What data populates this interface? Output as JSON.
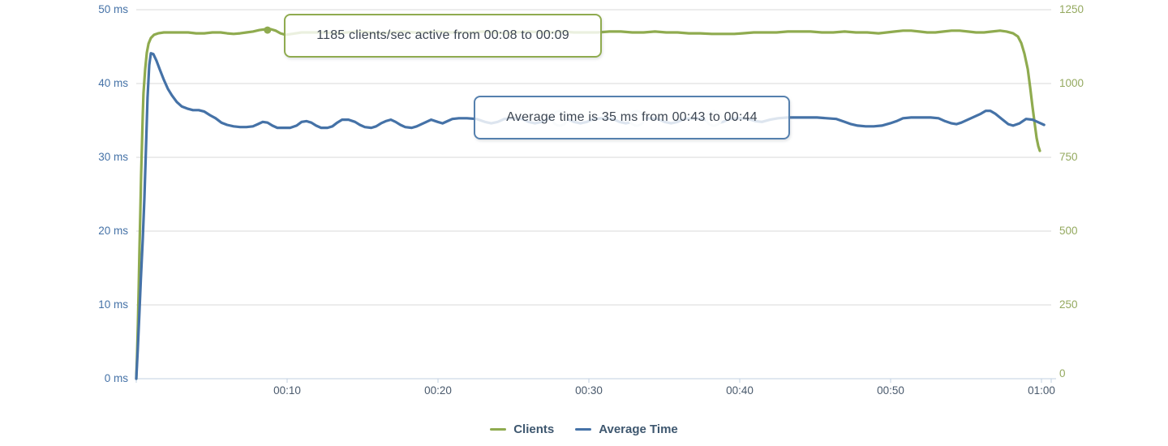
{
  "chart": {
    "legend": [
      {
        "label": "Clients",
        "color": "#8fab4f"
      },
      {
        "label": "Average Time",
        "color": "#4572a7"
      }
    ],
    "tooltips": [
      {
        "series": "Clients",
        "text": "1185 clients/sec active from 00:08 to 00:09"
      },
      {
        "series": "Average Time",
        "text": "Average time is 35 ms from 00:43 to 00:44"
      }
    ],
    "axes": {
      "left": {
        "labels": [
          "50 ms",
          "40 ms",
          "30 ms",
          "20 ms",
          "10 ms",
          "0 ms"
        ],
        "color": "#4572a7"
      },
      "right": {
        "labels": [
          "1250",
          "1000",
          "750",
          "500",
          "250",
          "0"
        ],
        "color": "#94a95f"
      },
      "x": {
        "labels": [
          "00:10",
          "00:20",
          "00:30",
          "00:40",
          "00:50",
          "01:00"
        ]
      }
    }
  },
  "chart_data": {
    "type": "line",
    "title": "",
    "xlabel": "",
    "x_axis": {
      "unit": "minutes",
      "range": [
        0,
        60.6
      ],
      "tick_minutes": [
        10,
        20,
        30,
        40,
        50,
        60
      ],
      "tick_labels": [
        "00:10",
        "00:20",
        "00:30",
        "00:40",
        "00:50",
        "01:00"
      ]
    },
    "y_axis_left": {
      "unit": "ms",
      "ylim": [
        0,
        50
      ],
      "tick_step": 10,
      "color": "#4572a7"
    },
    "y_axis_right": {
      "unit": "clients/sec",
      "ylim": [
        0,
        1250
      ],
      "tick_step": 250,
      "color": "#94a95f"
    },
    "grid": true,
    "legend_position": "bottom",
    "marker": {
      "series": "Clients",
      "x": 8.7,
      "value": 1181
    },
    "annotations": [
      {
        "series": "Clients",
        "text": "1185 clients/sec active from 00:08 to 00:09",
        "value": 1185,
        "from": "00:08",
        "to": "00:09"
      },
      {
        "series": "Average Time",
        "text": "Average time is 35 ms from 00:43 to 00:44",
        "value_ms": 35,
        "from": "00:43",
        "to": "00:44"
      }
    ],
    "series": [
      {
        "name": "Clients",
        "color": "#8fab4f",
        "axis": "right",
        "data": [
          [
            0,
            0
          ],
          [
            0.05,
            74
          ],
          [
            0.11,
            184
          ],
          [
            0.16,
            308
          ],
          [
            0.21,
            431
          ],
          [
            0.27,
            563
          ],
          [
            0.32,
            692
          ],
          [
            0.38,
            802
          ],
          [
            0.43,
            893
          ],
          [
            0.48,
            967
          ],
          [
            0.59,
            1049
          ],
          [
            0.7,
            1104
          ],
          [
            0.81,
            1135
          ],
          [
            0.97,
            1154
          ],
          [
            1.18,
            1165
          ],
          [
            1.45,
            1170
          ],
          [
            1.83,
            1173
          ],
          [
            2.36,
            1173
          ],
          [
            2.9,
            1173
          ],
          [
            3.44,
            1173
          ],
          [
            3.97,
            1170
          ],
          [
            4.51,
            1170
          ],
          [
            5.05,
            1173
          ],
          [
            5.59,
            1173
          ],
          [
            6.02,
            1170
          ],
          [
            6.45,
            1168
          ],
          [
            6.88,
            1170
          ],
          [
            7.3,
            1173
          ],
          [
            7.73,
            1176
          ],
          [
            8.16,
            1181
          ],
          [
            8.59,
            1184
          ],
          [
            8.92,
            1184
          ],
          [
            9.24,
            1179
          ],
          [
            9.56,
            1170
          ],
          [
            9.88,
            1165
          ],
          [
            10.31,
            1168
          ],
          [
            10.96,
            1173
          ],
          [
            11.71,
            1173
          ],
          [
            12.46,
            1173
          ],
          [
            13.21,
            1170
          ],
          [
            13.97,
            1173
          ],
          [
            14.72,
            1176
          ],
          [
            15.47,
            1173
          ],
          [
            16.22,
            1170
          ],
          [
            16.97,
            1173
          ],
          [
            17.72,
            1176
          ],
          [
            18.48,
            1173
          ],
          [
            19.23,
            1173
          ],
          [
            19.98,
            1176
          ],
          [
            20.73,
            1173
          ],
          [
            21.48,
            1173
          ],
          [
            22.24,
            1173
          ],
          [
            22.99,
            1176
          ],
          [
            23.74,
            1173
          ],
          [
            24.49,
            1170
          ],
          [
            25.24,
            1173
          ],
          [
            26,
            1176
          ],
          [
            26.75,
            1173
          ],
          [
            27.5,
            1173
          ],
          [
            28.25,
            1176
          ],
          [
            29.01,
            1173
          ],
          [
            29.76,
            1173
          ],
          [
            30.56,
            1173
          ],
          [
            31.37,
            1176
          ],
          [
            32.12,
            1176
          ],
          [
            32.87,
            1173
          ],
          [
            33.63,
            1173
          ],
          [
            34.38,
            1176
          ],
          [
            35.13,
            1173
          ],
          [
            35.88,
            1173
          ],
          [
            36.63,
            1170
          ],
          [
            37.38,
            1170
          ],
          [
            38.14,
            1168
          ],
          [
            38.89,
            1168
          ],
          [
            39.64,
            1168
          ],
          [
            40.18,
            1170
          ],
          [
            40.93,
            1173
          ],
          [
            41.68,
            1173
          ],
          [
            42.44,
            1173
          ],
          [
            43.19,
            1176
          ],
          [
            43.94,
            1176
          ],
          [
            44.69,
            1176
          ],
          [
            45.44,
            1173
          ],
          [
            46.2,
            1173
          ],
          [
            46.95,
            1176
          ],
          [
            47.7,
            1173
          ],
          [
            48.45,
            1173
          ],
          [
            49.2,
            1170
          ],
          [
            49.74,
            1173
          ],
          [
            50.28,
            1176
          ],
          [
            50.82,
            1179
          ],
          [
            51.36,
            1179
          ],
          [
            51.9,
            1176
          ],
          [
            52.43,
            1173
          ],
          [
            52.97,
            1173
          ],
          [
            53.51,
            1176
          ],
          [
            54.04,
            1179
          ],
          [
            54.58,
            1179
          ],
          [
            55.12,
            1176
          ],
          [
            55.66,
            1173
          ],
          [
            56.19,
            1173
          ],
          [
            56.73,
            1176
          ],
          [
            57.26,
            1179
          ],
          [
            57.69,
            1176
          ],
          [
            58.12,
            1170
          ],
          [
            58.44,
            1159
          ],
          [
            58.66,
            1137
          ],
          [
            58.87,
            1101
          ],
          [
            59.09,
            1049
          ],
          [
            59.25,
            986
          ],
          [
            59.41,
            920
          ],
          [
            59.57,
            857
          ],
          [
            59.68,
            816
          ],
          [
            59.79,
            788
          ],
          [
            59.89,
            772
          ]
        ]
      },
      {
        "name": "Average Time",
        "color": "#4572a7",
        "axis": "left",
        "data": [
          [
            0,
            0
          ],
          [
            0.1,
            4.1
          ],
          [
            0.2,
            8.5
          ],
          [
            0.3,
            13.4
          ],
          [
            0.43,
            18.9
          ],
          [
            0.54,
            24.4
          ],
          [
            0.64,
            31
          ],
          [
            0.75,
            38.1
          ],
          [
            0.86,
            42.5
          ],
          [
            0.97,
            44.1
          ],
          [
            1.13,
            44
          ],
          [
            1.34,
            43.1
          ],
          [
            1.56,
            41.9
          ],
          [
            1.83,
            40.5
          ],
          [
            2.09,
            39.3
          ],
          [
            2.36,
            38.4
          ],
          [
            2.69,
            37.5
          ],
          [
            3.01,
            36.9
          ],
          [
            3.38,
            36.6
          ],
          [
            3.76,
            36.4
          ],
          [
            4.14,
            36.4
          ],
          [
            4.51,
            36.2
          ],
          [
            4.89,
            35.7
          ],
          [
            5.26,
            35.3
          ],
          [
            5.64,
            34.7
          ],
          [
            6.02,
            34.4
          ],
          [
            6.45,
            34.2
          ],
          [
            6.88,
            34.1
          ],
          [
            7.3,
            34.1
          ],
          [
            7.73,
            34.2
          ],
          [
            8.06,
            34.5
          ],
          [
            8.38,
            34.8
          ],
          [
            8.7,
            34.7
          ],
          [
            9.02,
            34.3
          ],
          [
            9.35,
            34
          ],
          [
            9.78,
            34
          ],
          [
            10.2,
            34
          ],
          [
            10.63,
            34.3
          ],
          [
            10.96,
            34.8
          ],
          [
            11.28,
            34.9
          ],
          [
            11.6,
            34.7
          ],
          [
            11.92,
            34.3
          ],
          [
            12.25,
            34
          ],
          [
            12.68,
            34
          ],
          [
            13,
            34.2
          ],
          [
            13.32,
            34.7
          ],
          [
            13.64,
            35.1
          ],
          [
            14.07,
            35.1
          ],
          [
            14.5,
            34.8
          ],
          [
            14.82,
            34.4
          ],
          [
            15.15,
            34.1
          ],
          [
            15.58,
            34
          ],
          [
            15.9,
            34.2
          ],
          [
            16.22,
            34.6
          ],
          [
            16.54,
            34.9
          ],
          [
            16.87,
            35.1
          ],
          [
            17.19,
            34.8
          ],
          [
            17.51,
            34.4
          ],
          [
            17.83,
            34.1
          ],
          [
            18.26,
            34
          ],
          [
            18.59,
            34.2
          ],
          [
            18.91,
            34.5
          ],
          [
            19.23,
            34.8
          ],
          [
            19.55,
            35.1
          ],
          [
            19.98,
            34.8
          ],
          [
            20.3,
            34.6
          ],
          [
            20.63,
            34.9
          ],
          [
            20.95,
            35.2
          ],
          [
            21.38,
            35.3
          ],
          [
            21.92,
            35.3
          ],
          [
            22.56,
            35.2
          ],
          [
            23.1,
            34.8
          ],
          [
            23.53,
            34.6
          ],
          [
            23.96,
            34.8
          ],
          [
            24.39,
            35.2
          ],
          [
            24.92,
            35.3
          ],
          [
            25.57,
            35.2
          ],
          [
            26,
            34.8
          ],
          [
            26.43,
            34.6
          ],
          [
            26.86,
            34.8
          ],
          [
            27.29,
            35.2
          ],
          [
            27.93,
            35.3
          ],
          [
            28.58,
            35.2
          ],
          [
            29.01,
            34.8
          ],
          [
            29.44,
            34.6
          ],
          [
            29.87,
            34.8
          ],
          [
            30.3,
            35.2
          ],
          [
            30.94,
            35.3
          ],
          [
            31.59,
            35.2
          ],
          [
            32.02,
            34.8
          ],
          [
            32.45,
            34.6
          ],
          [
            32.87,
            34.8
          ],
          [
            33.3,
            35.2
          ],
          [
            33.95,
            35.3
          ],
          [
            34.59,
            35.2
          ],
          [
            35.02,
            34.8
          ],
          [
            35.45,
            34.6
          ],
          [
            35.88,
            34.8
          ],
          [
            36.31,
            35.2
          ],
          [
            36.96,
            35.3
          ],
          [
            37.6,
            35.2
          ],
          [
            38.03,
            34.8
          ],
          [
            38.46,
            34.6
          ],
          [
            38.89,
            34.8
          ],
          [
            39.32,
            35.2
          ],
          [
            39.96,
            35.3
          ],
          [
            40.61,
            35.2
          ],
          [
            41.04,
            34.9
          ],
          [
            41.47,
            34.8
          ],
          [
            42.01,
            35.1
          ],
          [
            42.54,
            35.3
          ],
          [
            43.19,
            35.4
          ],
          [
            43.83,
            35.4
          ],
          [
            44.48,
            35.4
          ],
          [
            45.12,
            35.4
          ],
          [
            45.77,
            35.3
          ],
          [
            46.41,
            35.2
          ],
          [
            46.95,
            34.8
          ],
          [
            47.38,
            34.5
          ],
          [
            47.81,
            34.3
          ],
          [
            48.35,
            34.2
          ],
          [
            48.88,
            34.2
          ],
          [
            49.42,
            34.3
          ],
          [
            49.96,
            34.6
          ],
          [
            50.39,
            34.9
          ],
          [
            50.82,
            35.3
          ],
          [
            51.36,
            35.4
          ],
          [
            52,
            35.4
          ],
          [
            52.65,
            35.4
          ],
          [
            53.18,
            35.3
          ],
          [
            53.61,
            34.9
          ],
          [
            54.04,
            34.6
          ],
          [
            54.36,
            34.5
          ],
          [
            54.69,
            34.7
          ],
          [
            55.12,
            35.1
          ],
          [
            55.55,
            35.5
          ],
          [
            55.98,
            35.9
          ],
          [
            56.3,
            36.3
          ],
          [
            56.62,
            36.3
          ],
          [
            56.94,
            35.9
          ],
          [
            57.37,
            35.2
          ],
          [
            57.8,
            34.5
          ],
          [
            58.12,
            34.3
          ],
          [
            58.55,
            34.6
          ],
          [
            58.98,
            35.2
          ],
          [
            59.41,
            35.1
          ],
          [
            59.84,
            34.7
          ],
          [
            60.17,
            34.4
          ]
        ]
      }
    ],
    "style": {
      "grid_color": "#d8d8d8",
      "axis_line_color": "#c0d0e0",
      "line_width": 3.2
    }
  }
}
